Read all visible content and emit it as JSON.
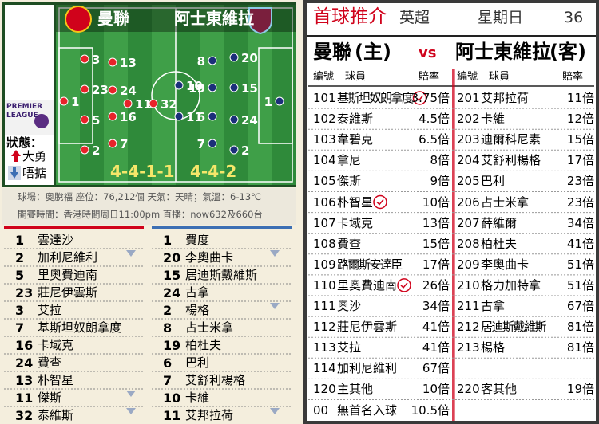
{
  "pitch": {
    "home": {
      "name": "曼聯",
      "formation": "4-4-1-1",
      "players": [
        "1",
        "3",
        "23",
        "5",
        "2",
        "13",
        "24",
        "16",
        "7",
        "11",
        "32"
      ]
    },
    "away": {
      "name": "阿士東維拉",
      "formation": "4-4-2",
      "players": [
        "1",
        "20",
        "15",
        "24",
        "2",
        "8",
        "19",
        "6",
        "7",
        "10",
        "11"
      ]
    }
  },
  "logo": [
    "PREMIER",
    "LEAGUE"
  ],
  "status": {
    "label": "狀態：",
    "up": "大勇",
    "down": "唔掂"
  },
  "info": [
    "球場：奧脫福 座位：76,212個 天氣：天晴；氣溫：6-13℃",
    "開賽時間：香港時間周日11:00pm 直播：now632及660台"
  ],
  "lineups": {
    "home": [
      {
        "no": "1",
        "name": "雲達沙"
      },
      {
        "no": "2",
        "name": "加利尼維利"
      },
      {
        "no": "5",
        "name": "里奧費迪南"
      },
      {
        "no": "23",
        "name": "莊尼伊雲斯"
      },
      {
        "no": "3",
        "name": "艾拉"
      },
      {
        "no": "7",
        "name": "基斯坦奴朗拿度"
      },
      {
        "no": "16",
        "name": "卡域克"
      },
      {
        "no": "24",
        "name": "費查"
      },
      {
        "no": "13",
        "name": "朴智星"
      },
      {
        "no": "11",
        "name": "傑斯"
      },
      {
        "no": "32",
        "name": "泰維斯"
      }
    ],
    "away": [
      {
        "no": "1",
        "name": "費度"
      },
      {
        "no": "20",
        "name": "李奧曲卡"
      },
      {
        "no": "15",
        "name": "居迪斯戴維斯"
      },
      {
        "no": "24",
        "name": "古拿"
      },
      {
        "no": "2",
        "name": "楊格"
      },
      {
        "no": "8",
        "name": "占士米拿"
      },
      {
        "no": "19",
        "name": "柏杜夫"
      },
      {
        "no": "6",
        "name": "巴利"
      },
      {
        "no": "7",
        "name": "艾舒利楊格"
      },
      {
        "no": "10",
        "name": "卡維"
      },
      {
        "no": "11",
        "name": "艾邦拉荷"
      }
    ]
  },
  "tips": {
    "title": "首球推介",
    "league": "英超",
    "day": "星期日",
    "page": "36",
    "home": "曼聯",
    "home_tag": "(主)",
    "vs": "vs",
    "away": "阿士東維拉",
    "away_tag": "(客)",
    "columns": [
      "編號",
      "球員",
      "賠率"
    ],
    "rows": [
      {
        "left": {
          "no": "101",
          "name": "基斯坦奴朗拿度",
          "odds": "3.75倍",
          "pick": true
        },
        "right": {
          "no": "201",
          "name": "艾邦拉荷",
          "odds": "11倍"
        }
      },
      {
        "left": {
          "no": "102",
          "name": "泰維斯",
          "odds": "4.5倍"
        },
        "right": {
          "no": "202",
          "name": "卡維",
          "odds": "12倍"
        }
      },
      {
        "left": {
          "no": "103",
          "name": "韋碧克",
          "odds": "6.5倍"
        },
        "right": {
          "no": "203",
          "name": "迪爾科尼素",
          "odds": "15倍"
        }
      },
      {
        "left": {
          "no": "104",
          "name": "拿尼",
          "odds": "8倍"
        },
        "right": {
          "no": "204",
          "name": "艾舒利楊格",
          "odds": "17倍"
        }
      },
      {
        "left": {
          "no": "105",
          "name": "傑斯",
          "odds": "9倍"
        },
        "right": {
          "no": "205",
          "name": "巴利",
          "odds": "23倍"
        }
      },
      {
        "left": {
          "no": "106",
          "name": "朴智星",
          "odds": "10倍",
          "pick": true
        },
        "right": {
          "no": "206",
          "name": "占士米拿",
          "odds": "23倍"
        }
      },
      {
        "left": {
          "no": "107",
          "name": "卡域克",
          "odds": "13倍"
        },
        "right": {
          "no": "207",
          "name": "薛維爾",
          "odds": "34倍"
        }
      },
      {
        "left": {
          "no": "108",
          "name": "費查",
          "odds": "15倍"
        },
        "right": {
          "no": "208",
          "name": "柏杜夫",
          "odds": "41倍"
        }
      },
      {
        "left": {
          "no": "109",
          "name": "路爾斯安達臣",
          "odds": "17倍"
        },
        "right": {
          "no": "209",
          "name": "李奧曲卡",
          "odds": "51倍"
        }
      },
      {
        "left": {
          "no": "110",
          "name": "里奧費迪南",
          "odds": "26倍",
          "pick": true
        },
        "right": {
          "no": "210",
          "name": "格力加特拿",
          "odds": "51倍"
        }
      },
      {
        "left": {
          "no": "111",
          "name": "奧沙",
          "odds": "34倍"
        },
        "right": {
          "no": "211",
          "name": "古拿",
          "odds": "67倍"
        }
      },
      {
        "left": {
          "no": "112",
          "name": "莊尼伊雲斯",
          "odds": "41倍"
        },
        "right": {
          "no": "212",
          "name": "居迪斯戴維斯",
          "odds": "81倍"
        }
      },
      {
        "left": {
          "no": "113",
          "name": "艾拉",
          "odds": "41倍"
        },
        "right": {
          "no": "213",
          "name": "楊格",
          "odds": "81倍"
        }
      },
      {
        "left": {
          "no": "114",
          "name": "加利尼維利",
          "odds": "67倍"
        }
      },
      {
        "left": {
          "no": "120",
          "name": "主其他",
          "odds": "10倍"
        },
        "right": {
          "no": "220",
          "name": "客其他",
          "odds": "19倍"
        }
      },
      {
        "left": {
          "no": "00",
          "name": "無首名入球",
          "odds": "10.5倍"
        }
      }
    ]
  }
}
